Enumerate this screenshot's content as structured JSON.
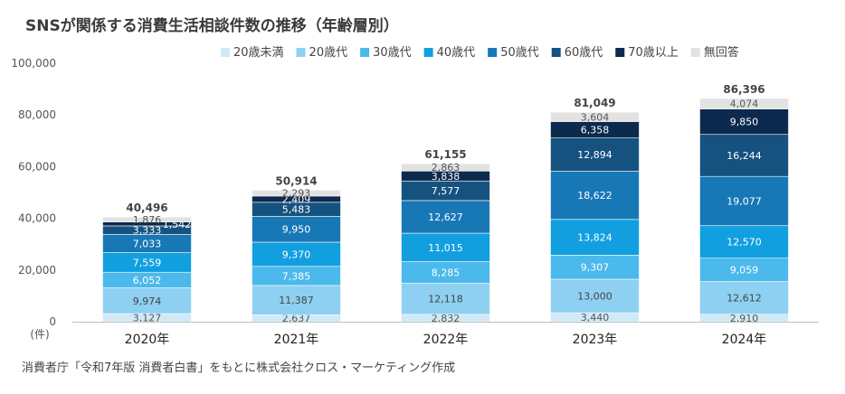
{
  "chart_data": {
    "type": "bar",
    "stacked": true,
    "title": "SNSが関係する消費生活相談件数の推移（年齢層別）",
    "categories": [
      "2020年",
      "2021年",
      "2022年",
      "2023年",
      "2024年"
    ],
    "y_ticks": [
      "0",
      "20,000",
      "40,000",
      "60,000",
      "80,000",
      "100,000"
    ],
    "ylim": [
      0,
      100000
    ],
    "yunit": "(件)",
    "legend_position": "top-right",
    "series": [
      {
        "name": "20歳未満",
        "color": "#cfe9f7",
        "text_color": "#555555",
        "values": [
          3127,
          2637,
          2832,
          3440,
          2910
        ],
        "value_labels": [
          "3,127",
          "2,637",
          "2,832",
          "3,440",
          "2,910"
        ]
      },
      {
        "name": "20歳代",
        "color": "#8ed0f1",
        "text_color": "#444444",
        "values": [
          9974,
          11387,
          12118,
          13000,
          12612
        ],
        "value_labels": [
          "9,974",
          "11,387",
          "12,118",
          "13,000",
          "12,612"
        ]
      },
      {
        "name": "30歳代",
        "color": "#4bb9eb",
        "text_color": "#ffffff",
        "values": [
          6052,
          7385,
          8285,
          9307,
          9059
        ],
        "value_labels": [
          "6,052",
          "7,385",
          "8,285",
          "9,307",
          "9,059"
        ]
      },
      {
        "name": "40歳代",
        "color": "#119fe0",
        "text_color": "#ffffff",
        "values": [
          7559,
          9370,
          11015,
          13824,
          12570
        ],
        "value_labels": [
          "7,559",
          "9,370",
          "11,015",
          "13,824",
          "12,570"
        ]
      },
      {
        "name": "50歳代",
        "color": "#1878b6",
        "text_color": "#ffffff",
        "values": [
          7033,
          9950,
          12627,
          18622,
          19077
        ],
        "value_labels": [
          "7,033",
          "9,950",
          "12,627",
          "18,622",
          "19,077"
        ]
      },
      {
        "name": "60歳代",
        "color": "#16527f",
        "text_color": "#ffffff",
        "values": [
          3333,
          5483,
          7577,
          12894,
          16244
        ],
        "value_labels": [
          "3,333",
          "5,483",
          "7,577",
          "12,894",
          "16,244"
        ]
      },
      {
        "name": "70歳以上",
        "color": "#0b2a4d",
        "text_color": "#ffffff",
        "values": [
          1542,
          2409,
          3838,
          6358,
          9850
        ],
        "value_labels": [
          "1,542",
          "2,409",
          "3,838",
          "6,358",
          "9,850"
        ]
      },
      {
        "name": "無回答",
        "color": "#e2e2e2",
        "text_color": "#555555",
        "values": [
          1876,
          2293,
          2863,
          3604,
          4074
        ],
        "value_labels": [
          "1,876",
          "2,293",
          "2,863",
          "3,604",
          "4,074"
        ]
      }
    ],
    "totals": [
      40496,
      50914,
      61155,
      81049,
      86396
    ],
    "total_labels": [
      "40,496",
      "50,914",
      "61,155",
      "81,049",
      "86,396"
    ]
  },
  "source_note": "消費者庁「令和7年版 消費者白書」をもとに株式会社クロス・マーケティング作成"
}
